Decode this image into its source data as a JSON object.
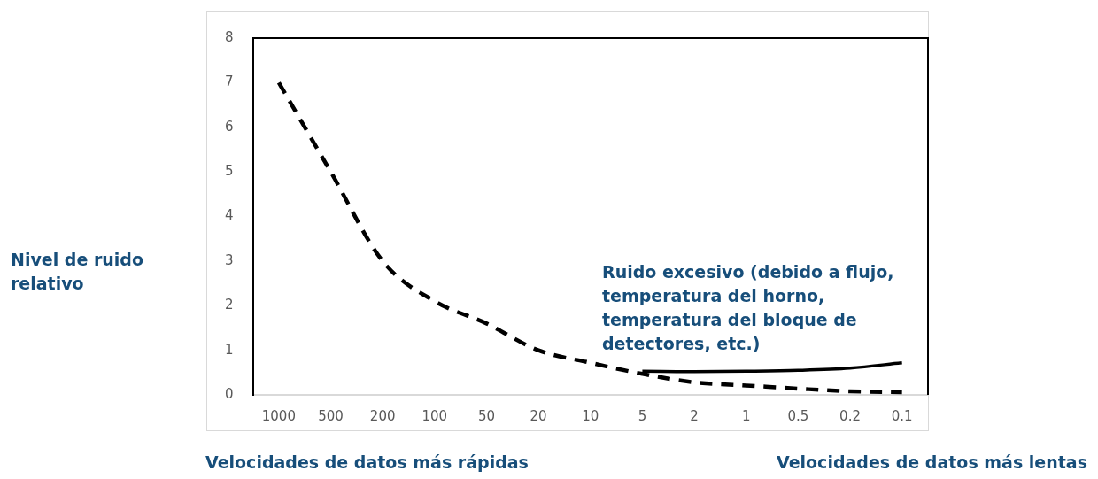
{
  "chart_data": {
    "type": "line",
    "ylabel": "Nivel de ruido relativo",
    "categories": [
      "1000",
      "500",
      "200",
      "100",
      "50",
      "20",
      "10",
      "5",
      "2",
      "1",
      "0.5",
      "0.2",
      "0.1"
    ],
    "series": [
      {
        "color": "#000000",
        "line_style": "dashed",
        "values": [
          7.0,
          5.0,
          3.0,
          2.1,
          1.6,
          1.0,
          0.72,
          0.47,
          0.28,
          0.21,
          0.14,
          0.08,
          0.06
        ]
      },
      {
        "color": "#000000",
        "line_style": "solid",
        "values": [
          null,
          null,
          null,
          null,
          null,
          null,
          null,
          0.53,
          0.52,
          0.53,
          0.55,
          0.6,
          0.72
        ]
      }
    ],
    "ylim": [
      0,
      8
    ],
    "yticks": [
      0,
      1,
      2,
      3,
      4,
      5,
      6,
      7,
      8
    ],
    "grid": false,
    "legend": false,
    "marker": "none",
    "annotations": [
      "Ruido excesivo (debido a flujo, temperatura del horno, temperatura del bloque de detectores, etc.)",
      "Velocidades de datos más rápidas",
      "Velocidades de datos más lentas"
    ]
  }
}
